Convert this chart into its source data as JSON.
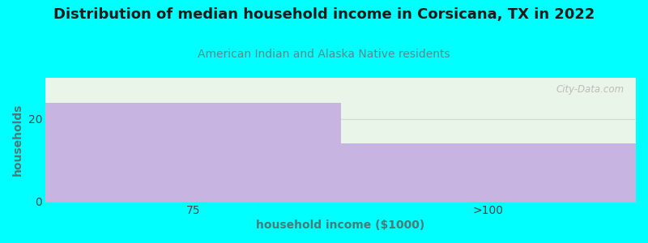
{
  "title": "Distribution of median household income in Corsicana, TX in 2022",
  "subtitle": "American Indian and Alaska Native residents",
  "categories": [
    "75",
    ">100"
  ],
  "values": [
    24,
    14
  ],
  "bar_color": "#C8B4E0",
  "background_color": "#00FFFF",
  "plot_bg_top": "#E8F5E8",
  "plot_bg_bottom": "#F5FFF5",
  "ylabel": "households",
  "xlabel": "household income ($1000)",
  "ylim": [
    0,
    30
  ],
  "yticks": [
    0,
    20
  ],
  "title_fontsize": 13,
  "subtitle_fontsize": 10,
  "subtitle_color": "#5B8A8A",
  "title_color": "#1a1a1a",
  "axis_label_color": "#4A7A7A",
  "tick_color": "#444444",
  "watermark": "City-Data.com"
}
